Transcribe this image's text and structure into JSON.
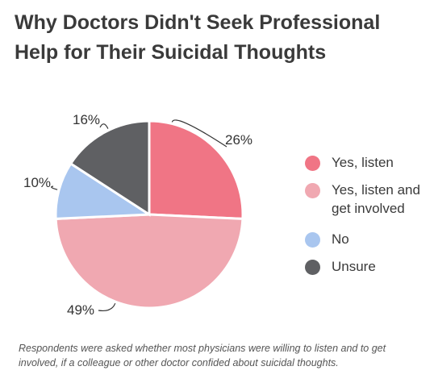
{
  "title": {
    "line1": "Why Doctors Didn't Seek Professional",
    "line2": "Help for Their Suicidal Thoughts"
  },
  "chart_data": {
    "type": "pie",
    "slices": [
      {
        "label": "Yes, listen",
        "value": 26,
        "value_label": "26%",
        "color": "#f07585"
      },
      {
        "label": "Yes, listen and get involved",
        "value": 49,
        "value_label": "49%",
        "color": "#f0a8b1"
      },
      {
        "label": "No",
        "value": 10,
        "value_label": "10%",
        "color": "#a9c6ef"
      },
      {
        "label": "Unsure",
        "value": 16,
        "value_label": "16%",
        "color": "#5f6063"
      }
    ],
    "legend_position": "right"
  },
  "legend": {
    "items": [
      {
        "line1": "Yes, listen",
        "line2": ""
      },
      {
        "line1": "Yes, listen and",
        "line2": "get involved"
      },
      {
        "line1": "No",
        "line2": ""
      },
      {
        "line1": "Unsure",
        "line2": ""
      }
    ]
  },
  "caption": {
    "line1": "Respondents were asked whether most physicians were willing to listen and to get",
    "line2": "involved, if a colleague or other doctor confided about suicidal thoughts."
  }
}
